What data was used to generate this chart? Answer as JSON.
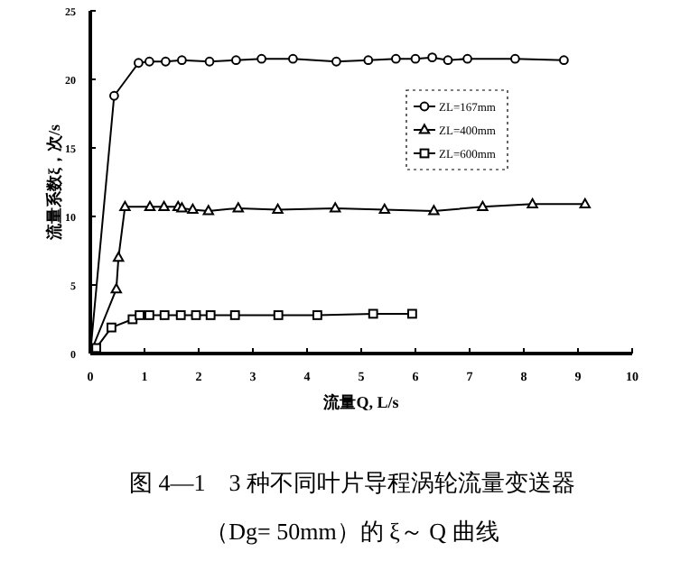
{
  "chart_data": {
    "type": "line",
    "xlabel": "流量Q, L/s",
    "ylabel": "流量系数ξ，次/s",
    "xlim": [
      0,
      10
    ],
    "ylim": [
      0,
      25
    ],
    "xticks": [
      0,
      1,
      2,
      3,
      4,
      5,
      6,
      7,
      8,
      9,
      10
    ],
    "yticks": [
      0,
      5,
      10,
      15,
      20,
      25
    ],
    "grid": false,
    "legend": "right",
    "line_style": "solid",
    "series": [
      {
        "name": "ZL=167mm",
        "color": "#000000",
        "marker": "circle",
        "x": [
          0,
          0.44,
          0.89,
          1.09,
          1.39,
          1.69,
          2.2,
          2.69,
          3.16,
          3.74,
          4.54,
          5.13,
          5.64,
          6.0,
          6.31,
          6.6,
          6.96,
          7.84,
          8.74
        ],
        "values": [
          0,
          18.8,
          21.2,
          21.3,
          21.3,
          21.4,
          21.3,
          21.4,
          21.5,
          21.5,
          21.3,
          21.4,
          21.5,
          21.5,
          21.6,
          21.4,
          21.5,
          21.5,
          21.4
        ]
      },
      {
        "name": "ZL=400mm",
        "color": "#000000",
        "marker": "triangle",
        "x": [
          0,
          0.48,
          0.52,
          0.64,
          1.1,
          1.36,
          1.62,
          1.69,
          1.89,
          2.18,
          2.73,
          3.46,
          4.52,
          5.43,
          6.34,
          7.24,
          8.16,
          9.13
        ],
        "values": [
          0,
          4.7,
          7.0,
          10.7,
          10.7,
          10.7,
          10.7,
          10.6,
          10.5,
          10.4,
          10.6,
          10.5,
          10.6,
          10.5,
          10.4,
          10.7,
          10.9,
          10.9
        ]
      },
      {
        "name": "ZL=600mm",
        "color": "#000000",
        "marker": "square",
        "x": [
          0,
          0.11,
          0.39,
          0.78,
          0.91,
          1.09,
          1.37,
          1.67,
          1.95,
          2.22,
          2.67,
          3.47,
          4.19,
          5.22,
          5.94
        ],
        "values": [
          0,
          0.4,
          1.9,
          2.5,
          2.8,
          2.8,
          2.8,
          2.8,
          2.8,
          2.8,
          2.8,
          2.8,
          2.8,
          2.9,
          2.9
        ]
      }
    ],
    "annotations": [
      "图 4—1　3 种不同叶片导程涡轮流量变送器",
      "（Dg= 50mm）的 ξ～ Q 曲线"
    ]
  }
}
